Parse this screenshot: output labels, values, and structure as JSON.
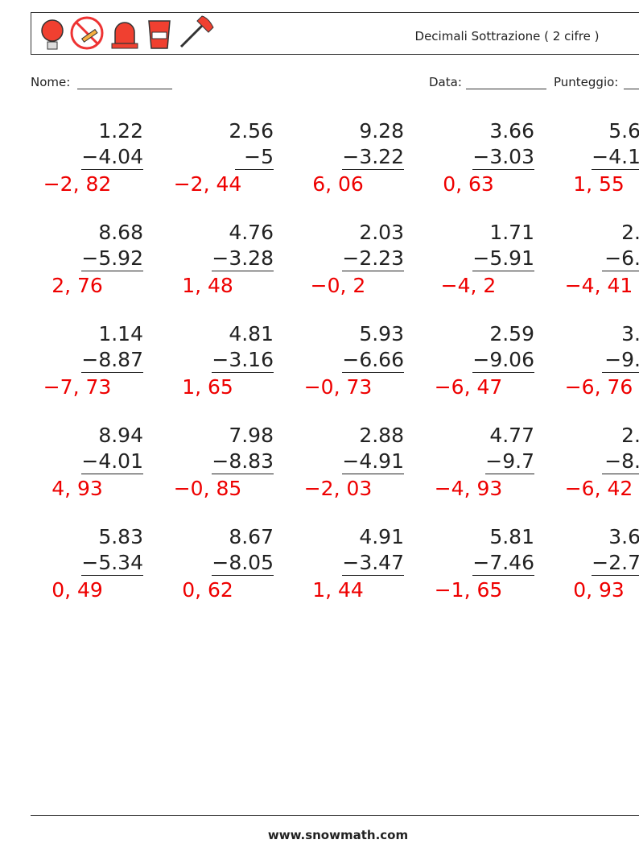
{
  "header": {
    "title": "Decimali Sottrazione ( 2 cifre )"
  },
  "form": {
    "name_label": "Nome:",
    "date_label": "Data:",
    "score_label": "Punteggio:"
  },
  "problems": {
    "rows": [
      [
        {
          "top": "1.22",
          "bottom": "−4.04",
          "answer": "−2, 82"
        },
        {
          "top": "2.56",
          "bottom": "−5",
          "answer": "−2, 44"
        },
        {
          "top": "9.28",
          "bottom": "−3.22",
          "answer": "6, 06"
        },
        {
          "top": "3.66",
          "bottom": "−3.03",
          "answer": "0, 63"
        },
        {
          "top": "5.6",
          "bottom": "−4.1",
          "answer": "1, 55"
        }
      ],
      [
        {
          "top": "8.68",
          "bottom": "−5.92",
          "answer": "2, 76"
        },
        {
          "top": "4.76",
          "bottom": "−3.28",
          "answer": "1, 48"
        },
        {
          "top": "2.03",
          "bottom": "−2.23",
          "answer": "−0, 2"
        },
        {
          "top": "1.71",
          "bottom": "−5.91",
          "answer": "−4, 2"
        },
        {
          "top": "2.",
          "bottom": "−6.",
          "answer": "−4, 41"
        }
      ],
      [
        {
          "top": "1.14",
          "bottom": "−8.87",
          "answer": "−7, 73"
        },
        {
          "top": "4.81",
          "bottom": "−3.16",
          "answer": "1, 65"
        },
        {
          "top": "5.93",
          "bottom": "−6.66",
          "answer": "−0, 73"
        },
        {
          "top": "2.59",
          "bottom": "−9.06",
          "answer": "−6, 47"
        },
        {
          "top": "3.",
          "bottom": "−9.",
          "answer": "−6, 76"
        }
      ],
      [
        {
          "top": "8.94",
          "bottom": "−4.01",
          "answer": "4, 93"
        },
        {
          "top": "7.98",
          "bottom": "−8.83",
          "answer": "−0, 85"
        },
        {
          "top": "2.88",
          "bottom": "−4.91",
          "answer": "−2, 03"
        },
        {
          "top": "4.77",
          "bottom": "−9.7",
          "answer": "−4, 93"
        },
        {
          "top": "2.",
          "bottom": "−8.",
          "answer": "−6, 42"
        }
      ],
      [
        {
          "top": "5.83",
          "bottom": "−5.34",
          "answer": "0, 49"
        },
        {
          "top": "8.67",
          "bottom": "−8.05",
          "answer": "0, 62"
        },
        {
          "top": "4.91",
          "bottom": "−3.47",
          "answer": "1, 44"
        },
        {
          "top": "5.81",
          "bottom": "−7.46",
          "answer": "−1, 65"
        },
        {
          "top": "3.6",
          "bottom": "−2.7",
          "answer": "0, 93"
        }
      ]
    ]
  },
  "footer": {
    "url": "www.snowmath.com"
  }
}
